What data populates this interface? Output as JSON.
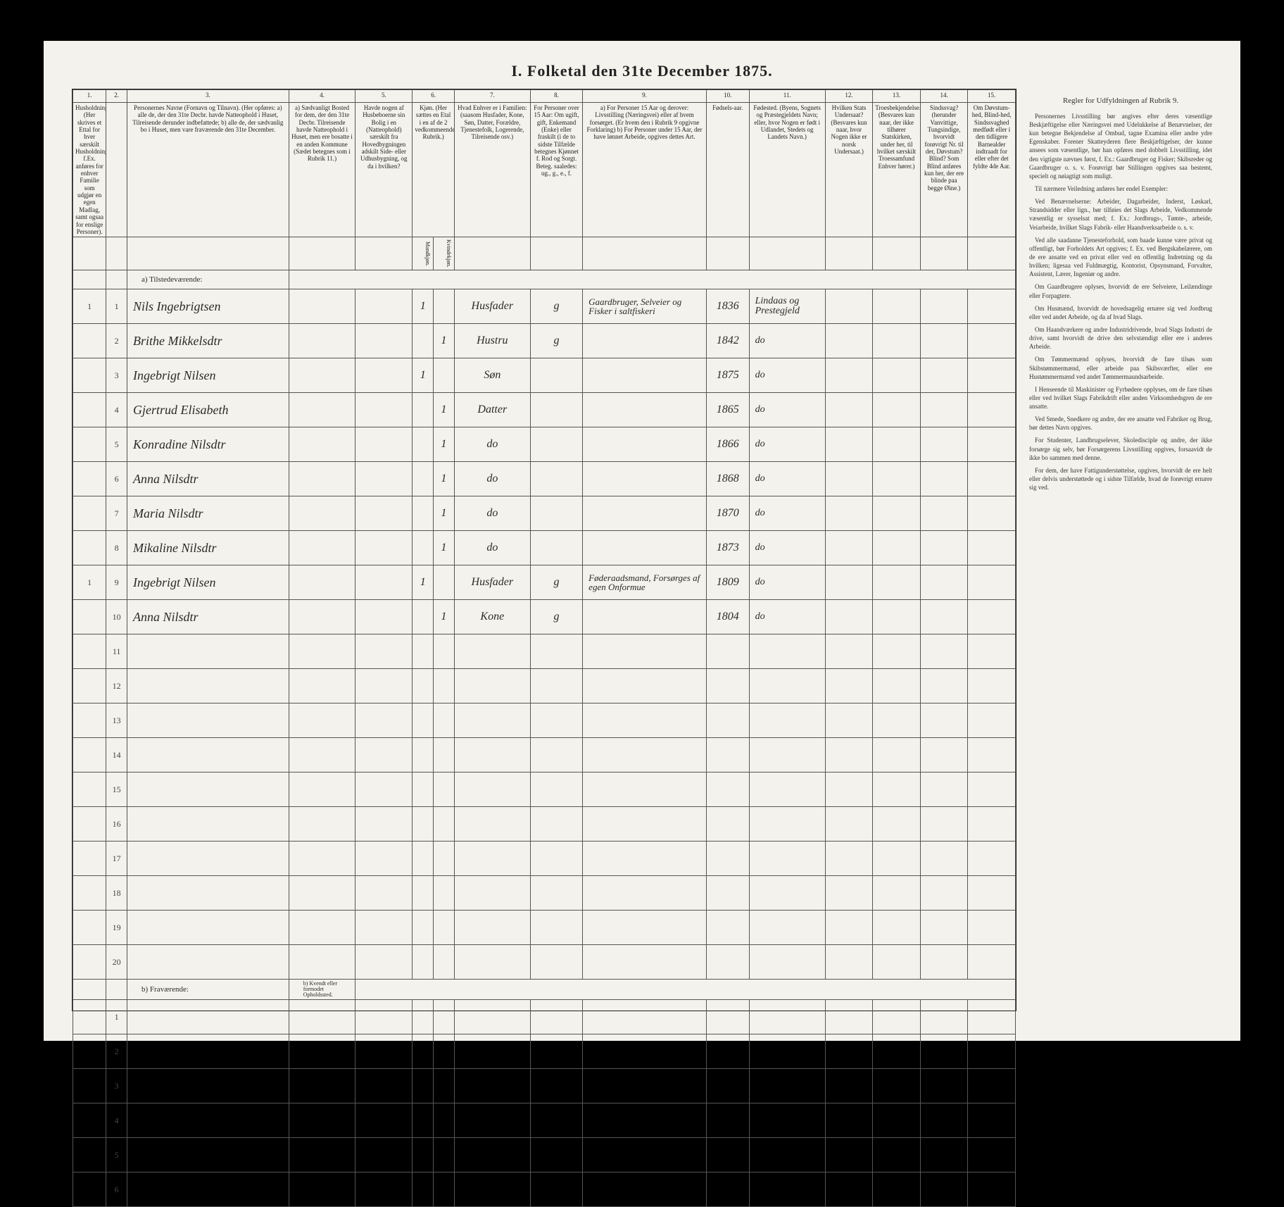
{
  "title": "I. Folketal den 31te December 1875.",
  "columns": {
    "nums": [
      "1.",
      "2.",
      "3.",
      "4.",
      "5.",
      "6.",
      "7.",
      "8.",
      "9.",
      "10.",
      "11.",
      "12.",
      "13.",
      "14.",
      "15."
    ],
    "h1": "Husholdninger. (Her skrives et Ettal for hver særskilt Husholdning; f.Ex. anføres for enhver Familie som udgjør en egen Madlag, samt ogsaa for enslige Personer).",
    "h2": "",
    "h3": "Personernes Navne (Fornavn og Tilnavn).\n(Her opføres:\na) alle de, der den 31te Decbr. havde Natteophold i Huset, Tilreisende derunder indbefattede;\nb) alle de, der sædvanlig bo i Huset, men vare fraværende den 31te December.",
    "h4": "a) Sædvanligt Bosted for dem, der den 31te Decbr. Tilreisende havde Natteophold i Huset, men ere bosatte i en anden Kommune (Sædet betegnes som i Rubrik 11.)",
    "h5": "Havde nogen af Husbeboerne sin Bolig i en (Natteophold) særskilt fra Hovedbygningen adskilt Side- eller Udhusbygning, og da i hvilken?",
    "h6": "Kjøn. (Her sættes en Etal i en af de 2 vedkommeende Rubrik.)",
    "h6a": "Mandkjøn.",
    "h6b": "Kvindekjøn.",
    "h7": "Hvad Enhver er i Familien: (saasom Husfader, Kone, Søn, Datter, Forældre, Tjenestefolk, Logerende, Tilreisende osv.)",
    "h8": "For Personer over 15 Aar: Om ugift, gift, Enkemand (Enke) eller fraskilt (i de to sidste Tilfælde betegnes Kjønnet f. Rod og Sorgt. Beteg. saaledes: ug., g., e., f.",
    "h9": "a) For Personer 15 Aar og derover: Livsstilling (Næringsvei) eller af hvem forsørget. (Er hvem den i Rubrik 9 opgivne Forklaring)\nb) For Personer under 15 Aar, der have lønnet Arbeide, opgives dettes Art.",
    "h10": "Fødsels-aar.",
    "h11": "Fødested.\n(Byens, Sognets og Præstegjeldets Navn; eller, hvor Nogen er født i Udlandet, Stedets og Landets Navn.)",
    "h12": "Hvilken Stats Undersaat?\n(Besvares kun naar, hvor Nogen ikke er norsk Undersaat.)",
    "h13": "Troesbekjendelse. (Besvares kun naar, der ikke tilhører Statskirken, under her, til hvilket særskilt Troessamfund Enhver hører.)",
    "h14": "Sindssvag? (herunder Vanvittige, Tungsindige, hvorvidt forøvrigt Nr. til der, Døvstum? Blind? Som Blind anføres kun her, der ere blinde paa begge Øine.)",
    "h15": "Om Døvstum-hed, Blind-hed, Sindssvaghed medfødt eller i den tidligere Barnealder indtraadt for eller efter det fyldte 4de Aar."
  },
  "section_a": "a) Tilstedeværende:",
  "section_b": "b) Fraværende:",
  "section_b_col4": "b) Kvendt eller formodet Opholdssted.",
  "rows": [
    {
      "hh": "1",
      "n": "1",
      "name": "Nils Ingebrigtsen",
      "c5": "",
      "m": "1",
      "k": "",
      "rel": "Husfader",
      "civ": "g",
      "occ": "Gaardbruger, Selveier og Fisker i saltfiskeri",
      "year": "1836",
      "place": "Lindaas og Prestegjeld"
    },
    {
      "hh": "",
      "n": "2",
      "name": "Brithe Mikkelsdtr",
      "c5": "",
      "m": "",
      "k": "1",
      "rel": "Hustru",
      "civ": "g",
      "occ": "",
      "year": "1842",
      "place": "do"
    },
    {
      "hh": "",
      "n": "3",
      "name": "Ingebrigt Nilsen",
      "c5": "",
      "m": "1",
      "k": "",
      "rel": "Søn",
      "civ": "",
      "occ": "",
      "year": "1875",
      "place": "do"
    },
    {
      "hh": "",
      "n": "4",
      "name": "Gjertrud Elisabeth",
      "c5": "",
      "m": "",
      "k": "1",
      "rel": "Datter",
      "civ": "",
      "occ": "",
      "year": "1865",
      "place": "do"
    },
    {
      "hh": "",
      "n": "5",
      "name": "Konradine Nilsdtr",
      "c5": "",
      "m": "",
      "k": "1",
      "rel": "do",
      "civ": "",
      "occ": "",
      "year": "1866",
      "place": "do"
    },
    {
      "hh": "",
      "n": "6",
      "name": "Anna Nilsdtr",
      "c5": "",
      "m": "",
      "k": "1",
      "rel": "do",
      "civ": "",
      "occ": "",
      "year": "1868",
      "place": "do"
    },
    {
      "hh": "",
      "n": "7",
      "name": "Maria Nilsdtr",
      "c5": "",
      "m": "",
      "k": "1",
      "rel": "do",
      "civ": "",
      "occ": "",
      "year": "1870",
      "place": "do"
    },
    {
      "hh": "",
      "n": "8",
      "name": "Mikaline Nilsdtr",
      "c5": "",
      "m": "",
      "k": "1",
      "rel": "do",
      "civ": "",
      "occ": "",
      "year": "1873",
      "place": "do"
    },
    {
      "hh": "1",
      "n": "9",
      "name": "Ingebrigt Nilsen",
      "c5": "",
      "m": "1",
      "k": "",
      "rel": "Husfader",
      "civ": "g",
      "occ": "Føderaadsmand, Forsørges af egen Onformue",
      "year": "1809",
      "place": "do"
    },
    {
      "hh": "",
      "n": "10",
      "name": "Anna Nilsdtr",
      "c5": "",
      "m": "",
      "k": "1",
      "rel": "Kone",
      "civ": "g",
      "occ": "",
      "year": "1804",
      "place": "do"
    }
  ],
  "empty_a": [
    "11",
    "12",
    "13",
    "14",
    "15",
    "16",
    "17",
    "18",
    "19",
    "20"
  ],
  "empty_b": [
    "1",
    "2",
    "3",
    "4",
    "5",
    "6"
  ],
  "side": {
    "title": "Regler for Udfyldningen af Rubrik 9.",
    "paras": [
      "Personernes Livsstilling bør angives efter deres væsentlige Beskjæftigelse eller Næringsvei med Udelukkelse af Benævnelser, der kun betegne Bekjendelse af Ombud, tagne Examina eller andre ydre Egenskaber. Forener Skatteyderen flere Beskjæftigelser, der kunne ansees som væsentlige, bør han opføres med dobbelt Livsstilling, idet den vigtigste nævnes først, f. Ex.: Gaardbruger og Fisker; Skibsreder og Gaardbruger o. s. v. Forøvrigt bør Stillingen opgives saa bestemt, specielt og nøiagtigt som muligt.",
      "Til nærmere Veiledning anføres her endel Exempler:",
      "Ved Benævnelserne: Arbeider, Dagarbeider, Inderst, Løskarl, Strandsidder eller lign., bør tilføies det Slags Arbeide, Vedkommende væsentlig er sysselsat med; f. Ex.: Jordbrugs-, Tømte-, arbeide, Veiarbeide, hvilket Slags Fabrik- eller Haandverksarbeide o. s. v.",
      "Ved alle saadanne Tjenesteforhold, som baade kunne være privat og offentligt, bør Forholdets Art opgives; f. Ex. ved Bergskabelærere, om de ere ansatte ved en privat eller ved en offentlig Indretning og da hvilken; ligesaa ved Fuldmægtig, Kontorist, Opsynsmand, Forvalter, Assistent, Lærer, Ingeniør og andre.",
      "Om Gaardbrugere oplyses, hvorvidt de ere Selveiere, Leilændinge eller Forpagtere.",
      "Om Husmænd, hvorvidt de hovedsagelig ernære sig ved Jordbrug eller ved andet Arbeide, og da af hvad Slags.",
      "Om Haandværkere og andre Industridrivende, hvad Slags Industri de drive, samt hvorvidt de drive den selvstændigt eller ere i anderes Arbeide.",
      "Om Tømmermænd oplyses, hvorvidt de fare tilsøs som Skibstømmermænd, eller arbeide paa Skibsværfter, eller ere Hustømmermænd ved andet Tømmermaundsarbeide.",
      "I Henseende til Maskinister og Fyrbødere opplyses, om de fare tilsøs eller ved hvilket Slags Fabrikdrift eller anden Virksomhedsgren de ere ansatte.",
      "Ved Smede, Snedkere og andre, der ere ansatte ved Fabriker og Brug, bør dettes Navn opgives.",
      "For Studenter, Landbrugselever, Skoledisciple og andre, der ikke forsørge sig selv, bør Forsørgerens Livsstilling opgives, forsaavidt de ikke bo sammen med denne.",
      "For dem, der have Fattigunderstøttelse, opgives, hvorvidt de ere helt eller delvis understøttede og i sidste Tilfælde, hvad de forøvrigt ernære sig ved."
    ]
  }
}
